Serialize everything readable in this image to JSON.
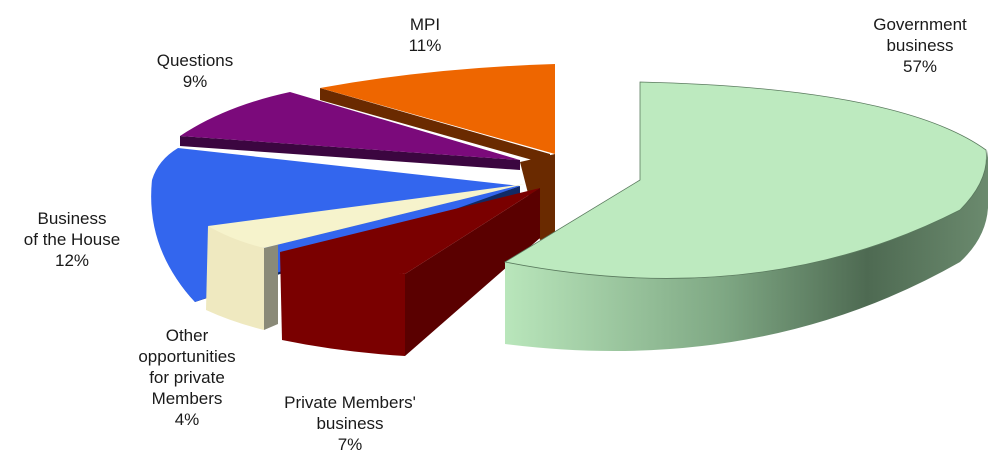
{
  "chart_data": {
    "type": "pie",
    "style": "3d-exploded",
    "slices": [
      {
        "label_lines": [
          "Government",
          "business"
        ],
        "percent_label": "57%",
        "value": 57,
        "color": "#bdeabf"
      },
      {
        "label_lines": [
          "MPI"
        ],
        "percent_label": "11%",
        "value": 11,
        "color": "#ee6600"
      },
      {
        "label_lines": [
          "Questions"
        ],
        "percent_label": "9%",
        "value": 9,
        "color": "#7b0a7b"
      },
      {
        "label_lines": [
          "Business",
          "of the House"
        ],
        "percent_label": "12%",
        "value": 12,
        "color": "#3366ee"
      },
      {
        "label_lines": [
          "Other",
          "opportunities",
          "for private",
          "Members"
        ],
        "percent_label": "4%",
        "value": 4,
        "color": "#f6f3cc"
      },
      {
        "label_lines": [
          "Private  Members'",
          "business"
        ],
        "percent_label": "7%",
        "value": 7,
        "color": "#7a0000"
      }
    ]
  }
}
